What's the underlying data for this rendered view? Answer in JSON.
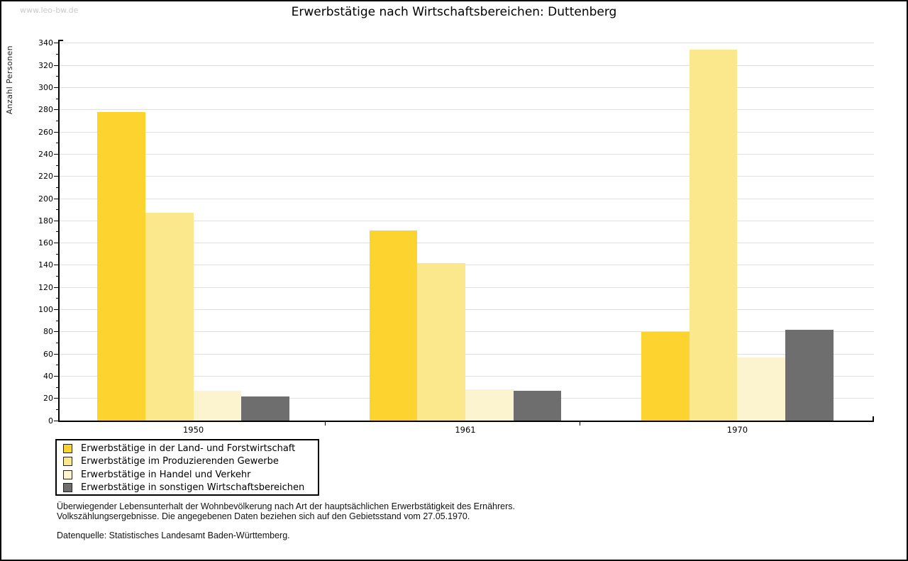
{
  "watermark": "www.leo-bw.de",
  "title": "Erwerbstätige nach Wirtschaftsbereichen: Duttenberg",
  "chart_data": {
    "type": "bar",
    "title": "Erwerbstätige nach Wirtschaftsbereichen: Duttenberg",
    "xlabel": "",
    "ylabel": "Anzahl Personen",
    "categories": [
      "1950",
      "1961",
      "1970"
    ],
    "series": [
      {
        "name": "Erwerbstätige in der Land- und Forstwirtschaft",
        "color": "#fcd32f",
        "values": [
          278,
          171,
          80
        ]
      },
      {
        "name": "Erwerbstätige im Produzierenden Gewerbe",
        "color": "#fce88c",
        "values": [
          187,
          142,
          334
        ]
      },
      {
        "name": "Erwerbstätige in Handel und Verkehr",
        "color": "#fcf4cf",
        "values": [
          27,
          28,
          57
        ]
      },
      {
        "name": "Erwerbstätige in sonstigen Wirtschaftsbereichen",
        "color": "#6e6e6e",
        "values": [
          22,
          27,
          82
        ]
      }
    ],
    "ylim": [
      0,
      340
    ],
    "ytick_step": 20,
    "yminor_step": 10,
    "yticks": [
      0,
      20,
      40,
      60,
      80,
      100,
      120,
      140,
      160,
      180,
      200,
      220,
      240,
      260,
      280,
      300,
      320,
      340
    ],
    "grid": true,
    "grid_color": "#e0e0e0",
    "legend_position": "bottom-left-outside"
  },
  "footnote": {
    "line1": "Überwiegender Lebensunterhalt der Wohnbevölkerung nach Art der hauptsächlichen Erwerbstätigkeit des Ernährers.",
    "line2": "Volkszählungsergebnisse. Die angegebenen Daten beziehen sich auf den Gebietsstand vom 27.05.1970.",
    "source": "Datenquelle: Statistisches Landesamt Baden-Württemberg."
  }
}
